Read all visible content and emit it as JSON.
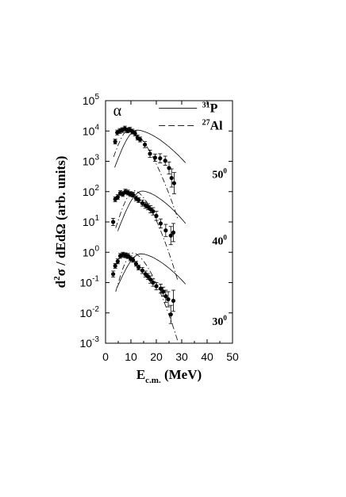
{
  "chart_data": {
    "type": "scatter",
    "panel_label": "α",
    "xlabel": {
      "main": "E",
      "sub": "c.m.",
      "unit": " (MeV)"
    },
    "ylabel": {
      "d2": "d",
      "sup": "2",
      "rest": "σ / dEdΩ  (arb. units)"
    },
    "xlim": [
      0,
      50
    ],
    "ylim_log10": [
      -3,
      5
    ],
    "scale_y": "log",
    "x_ticks": [
      0,
      10,
      20,
      30,
      40,
      50
    ],
    "y_ticks": [
      {
        "exp": 5,
        "base": "10",
        "sup": "5"
      },
      {
        "exp": 4,
        "base": "10",
        "sup": "4"
      },
      {
        "exp": 3,
        "base": "10",
        "sup": "3"
      },
      {
        "exp": 2,
        "base": "10",
        "sup": "2"
      },
      {
        "exp": 1,
        "base": "10",
        "sup": "1"
      },
      {
        "exp": 0,
        "base": "10",
        "sup": "0"
      },
      {
        "exp": -1,
        "base": "10",
        "sup": "-1"
      },
      {
        "exp": -2,
        "base": "10",
        "sup": "-2"
      },
      {
        "exp": -3,
        "base": "10",
        "sup": "-3"
      }
    ],
    "legend": {
      "placement": "top-right",
      "entries": [
        {
          "sup": "31",
          "label": "P",
          "style": "solid"
        },
        {
          "sup": "27",
          "label": "Al",
          "style": "dashed"
        }
      ]
    },
    "angle_labels": [
      {
        "angle": "50",
        "deg": "0",
        "x": 42,
        "y": 2.45
      },
      {
        "angle": "40",
        "deg": "0",
        "x": 42,
        "y": 0.25
      },
      {
        "angle": "30",
        "deg": "0",
        "x": 42,
        "y": -2.4
      }
    ],
    "series": [
      {
        "angle": "50",
        "points": [
          {
            "x": 3.8,
            "y": 3.65,
            "err": 0.08
          },
          {
            "x": 4.6,
            "y": 3.95,
            "err": 0.08
          },
          {
            "x": 5.6,
            "y": 4.0,
            "err": 0.08
          },
          {
            "x": 6.6,
            "y": 4.03,
            "err": 0.08
          },
          {
            "x": 7.6,
            "y": 4.08,
            "err": 0.08
          },
          {
            "x": 8.6,
            "y": 4.02,
            "err": 0.08
          },
          {
            "x": 9.6,
            "y": 4.04,
            "err": 0.08
          },
          {
            "x": 10.6,
            "y": 3.98,
            "err": 0.08
          },
          {
            "x": 11.6,
            "y": 3.92,
            "err": 0.08
          },
          {
            "x": 12.6,
            "y": 3.78,
            "err": 0.08
          },
          {
            "x": 13.6,
            "y": 3.72,
            "err": 0.08
          },
          {
            "x": 15.5,
            "y": 3.55,
            "err": 0.1
          },
          {
            "x": 17.5,
            "y": 3.25,
            "err": 0.12
          },
          {
            "x": 19.5,
            "y": 3.12,
            "err": 0.12
          },
          {
            "x": 21.5,
            "y": 3.1,
            "err": 0.15
          },
          {
            "x": 23.5,
            "y": 3.02,
            "err": 0.15
          },
          {
            "x": 25.0,
            "y": 2.78,
            "err": 0.2
          },
          {
            "x": 26.0,
            "y": 2.45,
            "err": 0.3
          },
          {
            "x": 27.0,
            "y": 2.28,
            "err": 0.35
          }
        ],
        "curve_31P": {
          "peak_x": 12.5,
          "peak_y": 4.03,
          "start_x": 3.6,
          "start_y": 2.8,
          "end_x": 31.5,
          "end_y": 2.95
        },
        "curve_27Al": {
          "peak_x": 9.5,
          "peak_y": 4.05,
          "start_x": 3.2,
          "start_y": 3.15,
          "end_x": 28.5,
          "end_y": 1.1
        }
      },
      {
        "angle": "40",
        "points": [
          {
            "x": 3.0,
            "y": 1.0,
            "err": 0.12
          },
          {
            "x": 3.8,
            "y": 1.75,
            "err": 0.08
          },
          {
            "x": 4.8,
            "y": 1.82,
            "err": 0.08
          },
          {
            "x": 5.8,
            "y": 1.95,
            "err": 0.08
          },
          {
            "x": 6.8,
            "y": 1.92,
            "err": 0.08
          },
          {
            "x": 7.8,
            "y": 2.0,
            "err": 0.08
          },
          {
            "x": 8.8,
            "y": 1.97,
            "err": 0.08
          },
          {
            "x": 9.8,
            "y": 1.92,
            "err": 0.08
          },
          {
            "x": 10.8,
            "y": 1.9,
            "err": 0.08
          },
          {
            "x": 12.0,
            "y": 1.78,
            "err": 0.08
          },
          {
            "x": 13.0,
            "y": 1.72,
            "err": 0.08
          },
          {
            "x": 14.5,
            "y": 1.62,
            "err": 0.1
          },
          {
            "x": 15.7,
            "y": 1.55,
            "err": 0.1
          },
          {
            "x": 16.7,
            "y": 1.5,
            "err": 0.1
          },
          {
            "x": 17.7,
            "y": 1.42,
            "err": 0.12
          },
          {
            "x": 18.7,
            "y": 1.35,
            "err": 0.12
          },
          {
            "x": 20.0,
            "y": 1.2,
            "err": 0.15
          },
          {
            "x": 21.7,
            "y": 0.95,
            "err": 0.15
          },
          {
            "x": 23.7,
            "y": 0.72,
            "err": 0.2
          },
          {
            "x": 25.7,
            "y": 0.55,
            "err": 0.3
          },
          {
            "x": 26.7,
            "y": 0.65,
            "err": 0.3
          }
        ],
        "curve_31P": {
          "peak_x": 14.5,
          "peak_y": 2.02,
          "start_x": 4.8,
          "start_y": 0.7,
          "end_x": 31.5,
          "end_y": 0.95
        },
        "curve_27Al": {
          "peak_x": 11.5,
          "peak_y": 2.03,
          "start_x": 4.0,
          "start_y": 0.8,
          "end_x": 28.5,
          "end_y": -0.95
        }
      },
      {
        "angle": "30",
        "points": [
          {
            "x": 3.0,
            "y": -0.72,
            "err": 0.1
          },
          {
            "x": 3.8,
            "y": -0.45,
            "err": 0.08
          },
          {
            "x": 4.8,
            "y": -0.3,
            "err": 0.08
          },
          {
            "x": 5.8,
            "y": -0.12,
            "err": 0.08
          },
          {
            "x": 6.8,
            "y": -0.08,
            "err": 0.08
          },
          {
            "x": 7.8,
            "y": -0.1,
            "err": 0.08
          },
          {
            "x": 8.8,
            "y": -0.12,
            "err": 0.08
          },
          {
            "x": 9.8,
            "y": -0.2,
            "err": 0.08
          },
          {
            "x": 10.8,
            "y": -0.25,
            "err": 0.08
          },
          {
            "x": 12.0,
            "y": -0.38,
            "err": 0.08
          },
          {
            "x": 13.0,
            "y": -0.5,
            "err": 0.08
          },
          {
            "x": 14.5,
            "y": -0.6,
            "err": 0.1
          },
          {
            "x": 15.7,
            "y": -0.72,
            "err": 0.1
          },
          {
            "x": 16.7,
            "y": -0.8,
            "err": 0.1
          },
          {
            "x": 17.7,
            "y": -0.9,
            "err": 0.12
          },
          {
            "x": 18.7,
            "y": -1.0,
            "err": 0.12
          },
          {
            "x": 20.0,
            "y": -1.12,
            "err": 0.12
          },
          {
            "x": 21.7,
            "y": -1.2,
            "err": 0.15
          },
          {
            "x": 22.7,
            "y": -1.3,
            "err": 0.15
          },
          {
            "x": 23.7,
            "y": -1.45,
            "err": 0.2
          },
          {
            "x": 24.7,
            "y": -1.55,
            "err": 0.25
          },
          {
            "x": 25.7,
            "y": -2.05,
            "err": 0.3
          },
          {
            "x": 26.7,
            "y": -1.6,
            "err": 0.35
          }
        ],
        "curve_31P": {
          "peak_x": 14.0,
          "peak_y": -0.05,
          "start_x": 4.6,
          "start_y": -1.15,
          "end_x": 31.5,
          "end_y": -1.05
        },
        "curve_27Al": {
          "peak_x": 11.0,
          "peak_y": -0.02,
          "start_x": 4.0,
          "start_y": -1.3,
          "end_x": 28.5,
          "end_y": -2.95
        }
      }
    ]
  }
}
